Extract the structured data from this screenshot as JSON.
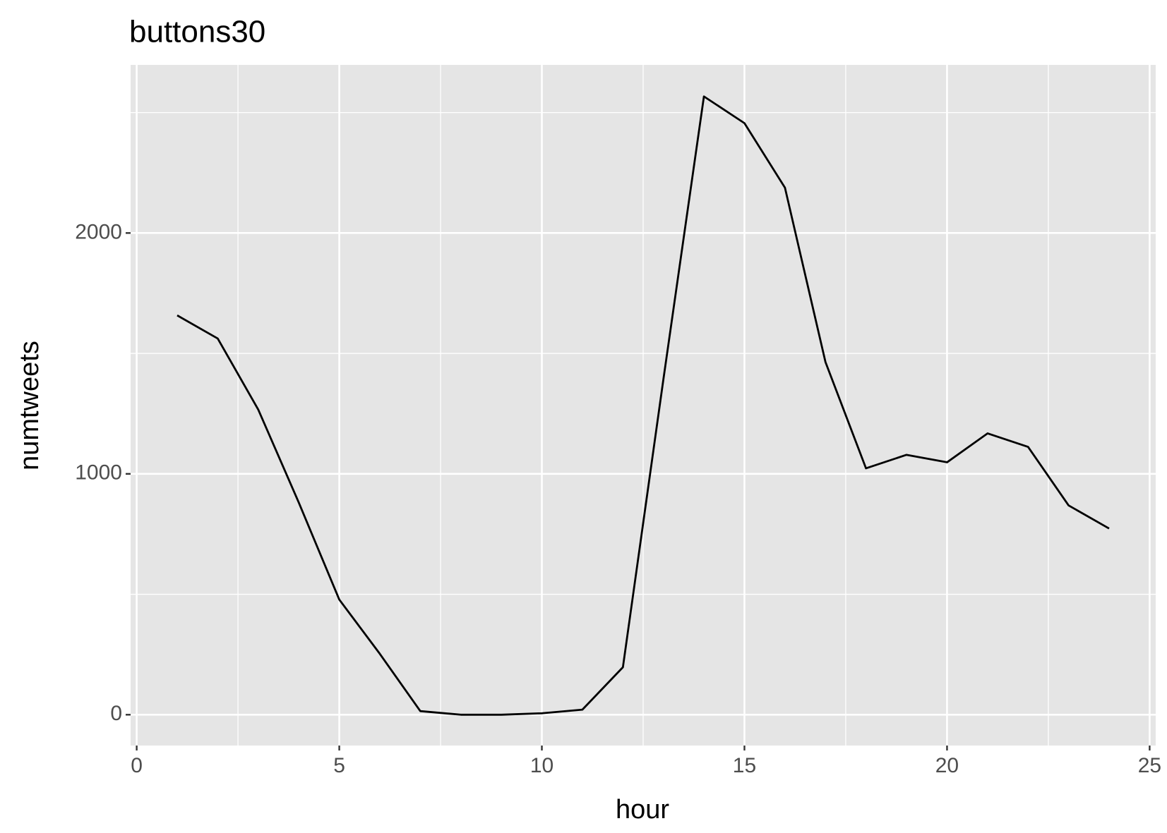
{
  "chart_data": {
    "type": "line",
    "title": "buttons30",
    "x_label": "hour",
    "y_label": "numtweets",
    "x": [
      1,
      2,
      3,
      4,
      5,
      6,
      7,
      8,
      9,
      10,
      11,
      12,
      13,
      14,
      15,
      16,
      17,
      18,
      19,
      20,
      21,
      22,
      23,
      24
    ],
    "series": [
      {
        "name": "numtweets",
        "color": "#000000",
        "values": [
          1658,
          1562,
          1267,
          881,
          478,
          253,
          15,
          0,
          0,
          6,
          21,
          197,
          1393,
          2567,
          2456,
          2188,
          1464,
          1023,
          1079,
          1048,
          1168,
          1112,
          869,
          773
        ]
      }
    ],
    "xlim": [
      -0.15,
      25.15
    ],
    "xticks": [
      0,
      5,
      10,
      15,
      20,
      25
    ],
    "ylim": [
      -128,
      2698
    ],
    "yticks": [
      0,
      1000,
      2000
    ],
    "grid": true
  }
}
